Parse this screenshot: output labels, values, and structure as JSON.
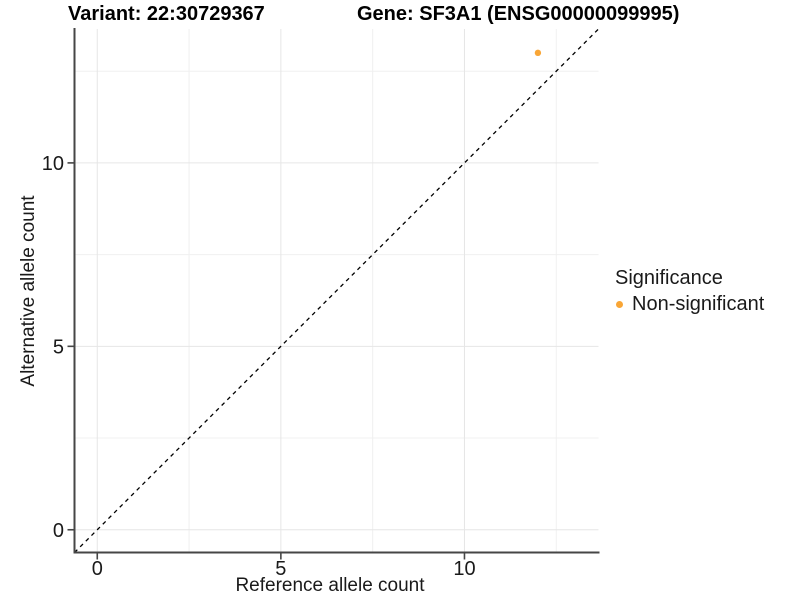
{
  "figure": {
    "title_left": "Variant: 22:30729367",
    "title_right": "Gene: SF3A1 (ENSG00000099995)"
  },
  "chart_data": {
    "type": "scatter",
    "title": "Variant: 22:30729367   Gene: SF3A1 (ENSG00000099995)",
    "xlabel": "Reference allele count",
    "ylabel": "Alternative allele count",
    "xlim": [
      -0.62,
      13.65
    ],
    "ylim": [
      -0.62,
      13.65
    ],
    "x_ticks": [
      0,
      5,
      10
    ],
    "y_ticks": [
      0,
      5,
      10
    ],
    "x_minor_gridlines": [
      2.5,
      7.5,
      12.5
    ],
    "y_minor_gridlines": [
      2.5,
      7.5,
      12.5
    ],
    "grid": "major and minor, light gray, on white background",
    "reference_line": {
      "kind": "identity y=x",
      "style": "dashed",
      "color": "#000000"
    },
    "series": [
      {
        "name": "Non-significant",
        "color": "#F9A636",
        "points": [
          [
            12,
            13
          ]
        ]
      }
    ],
    "legend": {
      "position": "right",
      "title": "Significance",
      "items": [
        {
          "label": "Non-significant",
          "color": "#F9A636"
        }
      ]
    }
  },
  "colors": {
    "background": "#FFFFFF",
    "grid_major": "#E6E6E6",
    "grid_minor": "#F0F0F0",
    "axis_line": "#464646",
    "tick_text": "#1a1a1a",
    "point": "#F9A636"
  }
}
